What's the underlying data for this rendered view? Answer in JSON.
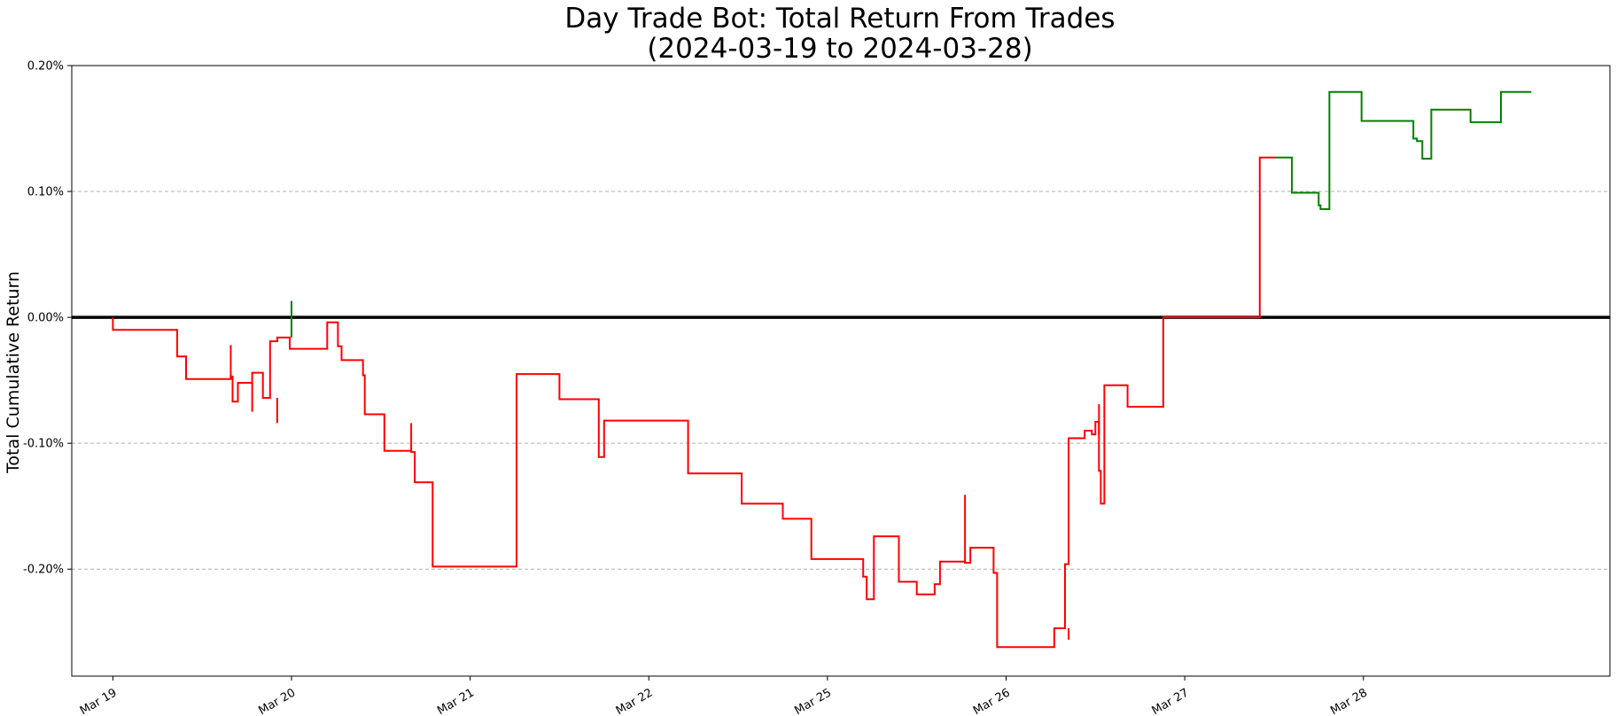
{
  "chart_data": {
    "type": "line",
    "title": "Day Trade Bot: Total Return From Trades",
    "subtitle": "(2024-03-19 to 2024-03-28)",
    "xlabel": "",
    "ylabel": "Total Cumulative Return",
    "x_ticks": [
      "Mar 19",
      "Mar 20",
      "Mar 21",
      "Mar 22",
      "Mar 25",
      "Mar 26",
      "Mar 27",
      "Mar 28"
    ],
    "y_ticks": [
      "0.20%",
      "0.10%",
      "0.00%",
      "-0.10%",
      "-0.20%"
    ],
    "y_tick_values": [
      0.2,
      0.1,
      0.0,
      -0.1,
      -0.2
    ],
    "ylim": [
      -0.285,
      0.2
    ],
    "xlim": [
      -0.23,
      8.38
    ],
    "grid": "horizontal dashed",
    "zero_line": true,
    "colors": {
      "negative": "#ff0000",
      "positive": "#008000",
      "zero_line": "#000000",
      "grid": "#b0b0b0"
    },
    "x_unit": "trading days from Mar 19",
    "series": [
      {
        "x": [
          0,
          0,
          0.36,
          0.36,
          0.41,
          0.41,
          0.66,
          0.66,
          0.67,
          0.67,
          0.7,
          0.7,
          0.78,
          0.78,
          0.84,
          0.84,
          0.88,
          0.88,
          0.92,
          0.92,
          0.99,
          0.99,
          1.0,
          1.0,
          1.2,
          1.2,
          1.26,
          1.26,
          1.28,
          1.28,
          1.4,
          1.4,
          1.41,
          1.41,
          1.52,
          1.52,
          1.67,
          1.67,
          1.69,
          1.69,
          1.79,
          1.79,
          2.26,
          2.26,
          2.5,
          2.5,
          2.72,
          2.72,
          2.75,
          2.75,
          3.22,
          3.22,
          3.52,
          3.52,
          3.75,
          3.75,
          3.91,
          3.91,
          4.2,
          4.2,
          4.22,
          4.22,
          4.26,
          4.26,
          4.4,
          4.4,
          4.5,
          4.5,
          4.6,
          4.6,
          4.63,
          4.63,
          4.77,
          4.77,
          4.8,
          4.8,
          4.93,
          4.93,
          4.95,
          4.95,
          5.27,
          5.27,
          5.33,
          5.33,
          5.35,
          5.35,
          5.44,
          5.44,
          5.48,
          5.48,
          5.5,
          5.5,
          5.52,
          5.52,
          5.53,
          5.53,
          5.55,
          5.55,
          5.68,
          5.68,
          5.88,
          5.88,
          6.42,
          6.42,
          6.51
        ],
        "y": [
          0,
          -0.01,
          -0.01,
          -0.031,
          -0.031,
          -0.049,
          -0.049,
          -0.047,
          -0.047,
          -0.067,
          -0.067,
          -0.052,
          -0.052,
          -0.044,
          -0.044,
          -0.064,
          -0.064,
          -0.019,
          -0.019,
          -0.016,
          -0.016,
          -0.025,
          -0.025,
          -0.025,
          -0.025,
          -0.004,
          -0.004,
          -0.023,
          -0.023,
          -0.034,
          -0.034,
          -0.046,
          -0.046,
          -0.077,
          -0.077,
          -0.106,
          -0.106,
          -0.107,
          -0.107,
          -0.131,
          -0.131,
          -0.198,
          -0.198,
          -0.045,
          -0.045,
          -0.065,
          -0.065,
          -0.111,
          -0.111,
          -0.082,
          -0.082,
          -0.124,
          -0.124,
          -0.148,
          -0.148,
          -0.16,
          -0.16,
          -0.192,
          -0.192,
          -0.206,
          -0.206,
          -0.224,
          -0.224,
          -0.174,
          -0.174,
          -0.21,
          -0.21,
          -0.22,
          -0.22,
          -0.212,
          -0.212,
          -0.194,
          -0.194,
          -0.195,
          -0.195,
          -0.183,
          -0.183,
          -0.203,
          -0.203,
          -0.262,
          -0.262,
          -0.247,
          -0.247,
          -0.196,
          -0.196,
          -0.096,
          -0.096,
          -0.09,
          -0.09,
          -0.093,
          -0.093,
          -0.083,
          -0.083,
          -0.122,
          -0.122,
          -0.148,
          -0.148,
          -0.054,
          -0.054,
          -0.071,
          -0.071,
          0.0,
          0.0,
          0.127,
          0.127
        ],
        "color": "#ff0000"
      },
      {
        "x": [
          6.51,
          6.6,
          6.6,
          6.75,
          6.75,
          6.76,
          6.76,
          6.81,
          6.81,
          6.99,
          6.99,
          7.28,
          7.28,
          7.3,
          7.3,
          7.33,
          7.33,
          7.38,
          7.38,
          7.6,
          7.6,
          7.77,
          7.77,
          7.94
        ],
        "y": [
          0.127,
          0.127,
          0.099,
          0.099,
          0.089,
          0.089,
          0.086,
          0.086,
          0.179,
          0.179,
          0.156,
          0.156,
          0.142,
          0.142,
          0.14,
          0.14,
          0.126,
          0.126,
          0.165,
          0.165,
          0.155,
          0.155,
          0.179,
          0.179
        ],
        "color": "#008000"
      }
    ],
    "spikes": [
      {
        "x": 0.66,
        "y1": -0.049,
        "y2": -0.022,
        "color": "#ff0000"
      },
      {
        "x": 0.78,
        "y1": -0.052,
        "y2": -0.075,
        "color": "#ff0000"
      },
      {
        "x": 0.92,
        "y1": -0.064,
        "y2": -0.084,
        "color": "#ff0000"
      },
      {
        "x": 1.0,
        "y1": -0.016,
        "y2": 0.013,
        "color": "#008000"
      },
      {
        "x": 1.67,
        "y1": -0.106,
        "y2": -0.084,
        "color": "#ff0000"
      },
      {
        "x": 4.77,
        "y1": -0.194,
        "y2": -0.141,
        "color": "#ff0000"
      },
      {
        "x": 5.35,
        "y1": -0.247,
        "y2": -0.256,
        "color": "#ff0000"
      },
      {
        "x": 5.52,
        "y1": -0.093,
        "y2": -0.069,
        "color": "#ff0000"
      }
    ]
  }
}
